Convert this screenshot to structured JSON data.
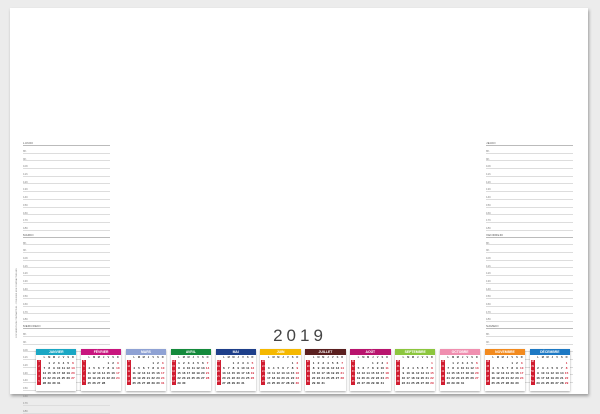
{
  "year": "2019",
  "left_agenda": {
    "days": [
      {
        "name": "LUNDI",
        "hours": [
          "8h",
          "9h",
          "10h",
          "11h",
          "12h",
          "13h",
          "14h",
          "15h",
          "16h",
          "17h",
          "18h"
        ]
      },
      {
        "name": "MARDI",
        "hours": [
          "8h",
          "9h",
          "10h",
          "11h",
          "12h",
          "13h",
          "14h",
          "15h",
          "16h",
          "17h",
          "18h"
        ]
      },
      {
        "name": "MERCREDI",
        "hours": [
          "8h",
          "9h",
          "10h",
          "11h",
          "12h",
          "13h",
          "14h",
          "15h",
          "16h",
          "17h",
          "18h"
        ]
      }
    ]
  },
  "right_agenda": {
    "days": [
      {
        "name": "JEUDI",
        "hours": [
          "8h",
          "9h",
          "10h",
          "11h",
          "12h",
          "13h",
          "14h",
          "15h",
          "16h",
          "17h",
          "18h"
        ]
      },
      {
        "name": "VENDREDI",
        "hours": [
          "8h",
          "9h",
          "10h",
          "11h",
          "12h",
          "13h",
          "14h",
          "15h",
          "16h",
          "17h",
          "18h"
        ]
      },
      {
        "name": "SAMEDI",
        "hours": [
          "8h",
          "9h",
          "10h",
          "11h",
          "12h",
          "13h",
          "14h"
        ]
      }
    ]
  },
  "side_note": "DOCUMENT NON CONTRACTUEL - COULEURS NON CONTRACTUELLES",
  "weekday_initials": [
    "L",
    "M",
    "M",
    "J",
    "V",
    "S",
    "D"
  ],
  "months": [
    {
      "name": "JANVIER",
      "color": "#1aa7c4",
      "weeks": [
        [
          "1",
          "",
          "1",
          "2",
          "3",
          "4",
          "5",
          "6"
        ],
        [
          "2",
          "7",
          "8",
          "9",
          "10",
          "11",
          "12",
          "13"
        ],
        [
          "3",
          "14",
          "15",
          "16",
          "17",
          "18",
          "19",
          "20"
        ],
        [
          "4",
          "21",
          "22",
          "23",
          "24",
          "25",
          "26",
          "27"
        ],
        [
          "5",
          "28",
          "29",
          "30",
          "31",
          "",
          "",
          ""
        ]
      ]
    },
    {
      "name": "FÉVRIER",
      "color": "#c8157e",
      "weeks": [
        [
          "5",
          "",
          "",
          "",
          "",
          "1",
          "2",
          "3"
        ],
        [
          "6",
          "4",
          "5",
          "6",
          "7",
          "8",
          "9",
          "10"
        ],
        [
          "7",
          "11",
          "12",
          "13",
          "14",
          "15",
          "16",
          "17"
        ],
        [
          "8",
          "18",
          "19",
          "20",
          "21",
          "22",
          "23",
          "24"
        ],
        [
          "9",
          "25",
          "26",
          "27",
          "28",
          "",
          "",
          ""
        ]
      ]
    },
    {
      "name": "MARS",
      "color": "#8fa2d4",
      "weeks": [
        [
          "9",
          "",
          "",
          "",
          "",
          "1",
          "2",
          "3"
        ],
        [
          "10",
          "4",
          "5",
          "6",
          "7",
          "8",
          "9",
          "10"
        ],
        [
          "11",
          "11",
          "12",
          "13",
          "14",
          "15",
          "16",
          "17"
        ],
        [
          "12",
          "18",
          "19",
          "20",
          "21",
          "22",
          "23",
          "24"
        ],
        [
          "13",
          "25",
          "26",
          "27",
          "28",
          "29",
          "30",
          "31"
        ]
      ]
    },
    {
      "name": "AVRIL",
      "color": "#148a3c",
      "weeks": [
        [
          "14",
          "1",
          "2",
          "3",
          "4",
          "5",
          "6",
          "7"
        ],
        [
          "15",
          "8",
          "9",
          "10",
          "11",
          "12",
          "13",
          "14"
        ],
        [
          "16",
          "15",
          "16",
          "17",
          "18",
          "19",
          "20",
          "21"
        ],
        [
          "17",
          "22",
          "23",
          "24",
          "25",
          "26",
          "27",
          "28"
        ],
        [
          "18",
          "29",
          "30",
          "",
          "",
          "",
          "",
          ""
        ]
      ]
    },
    {
      "name": "MAI",
      "color": "#1e3f8a",
      "weeks": [
        [
          "18",
          "",
          "",
          "1",
          "2",
          "3",
          "4",
          "5"
        ],
        [
          "19",
          "6",
          "7",
          "8",
          "9",
          "10",
          "11",
          "12"
        ],
        [
          "20",
          "13",
          "14",
          "15",
          "16",
          "17",
          "18",
          "19"
        ],
        [
          "21",
          "20",
          "21",
          "22",
          "23",
          "24",
          "25",
          "26"
        ],
        [
          "22",
          "27",
          "28",
          "29",
          "30",
          "31",
          "",
          ""
        ]
      ]
    },
    {
      "name": "JUIN",
      "color": "#f5b800",
      "weeks": [
        [
          "22",
          "",
          "",
          "",
          "",
          "",
          "1",
          "2"
        ],
        [
          "23",
          "3",
          "4",
          "5",
          "6",
          "7",
          "8",
          "9"
        ],
        [
          "24",
          "10",
          "11",
          "12",
          "13",
          "14",
          "15",
          "16"
        ],
        [
          "25",
          "17",
          "18",
          "19",
          "20",
          "21",
          "22",
          "23"
        ],
        [
          "26",
          "24",
          "25",
          "26",
          "27",
          "28",
          "29",
          "30"
        ]
      ]
    },
    {
      "name": "JUILLET",
      "color": "#5a1f1f",
      "weeks": [
        [
          "27",
          "1",
          "2",
          "3",
          "4",
          "5",
          "6",
          "7"
        ],
        [
          "28",
          "8",
          "9",
          "10",
          "11",
          "12",
          "13",
          "14"
        ],
        [
          "29",
          "15",
          "16",
          "17",
          "18",
          "19",
          "20",
          "21"
        ],
        [
          "30",
          "22",
          "23",
          "24",
          "25",
          "26",
          "27",
          "28"
        ],
        [
          "31",
          "29",
          "30",
          "31",
          "",
          "",
          "",
          ""
        ]
      ]
    },
    {
      "name": "AOÛT",
      "color": "#b8146e",
      "weeks": [
        [
          "31",
          "",
          "",
          "",
          "1",
          "2",
          "3",
          "4"
        ],
        [
          "32",
          "5",
          "6",
          "7",
          "8",
          "9",
          "10",
          "11"
        ],
        [
          "33",
          "12",
          "13",
          "14",
          "15",
          "16",
          "17",
          "18"
        ],
        [
          "34",
          "19",
          "20",
          "21",
          "22",
          "23",
          "24",
          "25"
        ],
        [
          "35",
          "26",
          "27",
          "28",
          "29",
          "30",
          "31",
          ""
        ]
      ]
    },
    {
      "name": "SEPTEMBRE",
      "color": "#8cc63e",
      "weeks": [
        [
          "35",
          "",
          "",
          "",
          "",
          "",
          "",
          "1"
        ],
        [
          "36",
          "2",
          "3",
          "4",
          "5",
          "6",
          "7",
          "8"
        ],
        [
          "37",
          "9",
          "10",
          "11",
          "12",
          "13",
          "14",
          "15"
        ],
        [
          "38",
          "16",
          "17",
          "18",
          "19",
          "20",
          "21",
          "22"
        ],
        [
          "39",
          "23",
          "24",
          "25",
          "26",
          "27",
          "28",
          "29"
        ]
      ]
    },
    {
      "name": "OCTOBRE",
      "color": "#f08fb0",
      "weeks": [
        [
          "40",
          "",
          "1",
          "2",
          "3",
          "4",
          "5",
          "6"
        ],
        [
          "41",
          "7",
          "8",
          "9",
          "10",
          "11",
          "12",
          "13"
        ],
        [
          "42",
          "14",
          "15",
          "16",
          "17",
          "18",
          "19",
          "20"
        ],
        [
          "43",
          "21",
          "22",
          "23",
          "24",
          "25",
          "26",
          "27"
        ],
        [
          "44",
          "28",
          "29",
          "30",
          "31",
          "",
          "",
          ""
        ]
      ]
    },
    {
      "name": "NOVEMBRE",
      "color": "#f28a1e",
      "weeks": [
        [
          "44",
          "",
          "",
          "",
          "",
          "1",
          "2",
          "3"
        ],
        [
          "45",
          "4",
          "5",
          "6",
          "7",
          "8",
          "9",
          "10"
        ],
        [
          "46",
          "11",
          "12",
          "13",
          "14",
          "15",
          "16",
          "17"
        ],
        [
          "47",
          "18",
          "19",
          "20",
          "21",
          "22",
          "23",
          "24"
        ],
        [
          "48",
          "25",
          "26",
          "27",
          "28",
          "29",
          "30",
          ""
        ]
      ]
    },
    {
      "name": "DÉCEMBRE",
      "color": "#1d79c4",
      "weeks": [
        [
          "48",
          "",
          "",
          "",
          "",
          "",
          "",
          "1"
        ],
        [
          "49",
          "2",
          "3",
          "4",
          "5",
          "6",
          "7",
          "8"
        ],
        [
          "50",
          "9",
          "10",
          "11",
          "12",
          "13",
          "14",
          "15"
        ],
        [
          "51",
          "16",
          "17",
          "18",
          "19",
          "20",
          "21",
          "22"
        ],
        [
          "52",
          "23",
          "24",
          "25",
          "26",
          "27",
          "28",
          "29"
        ]
      ]
    }
  ]
}
